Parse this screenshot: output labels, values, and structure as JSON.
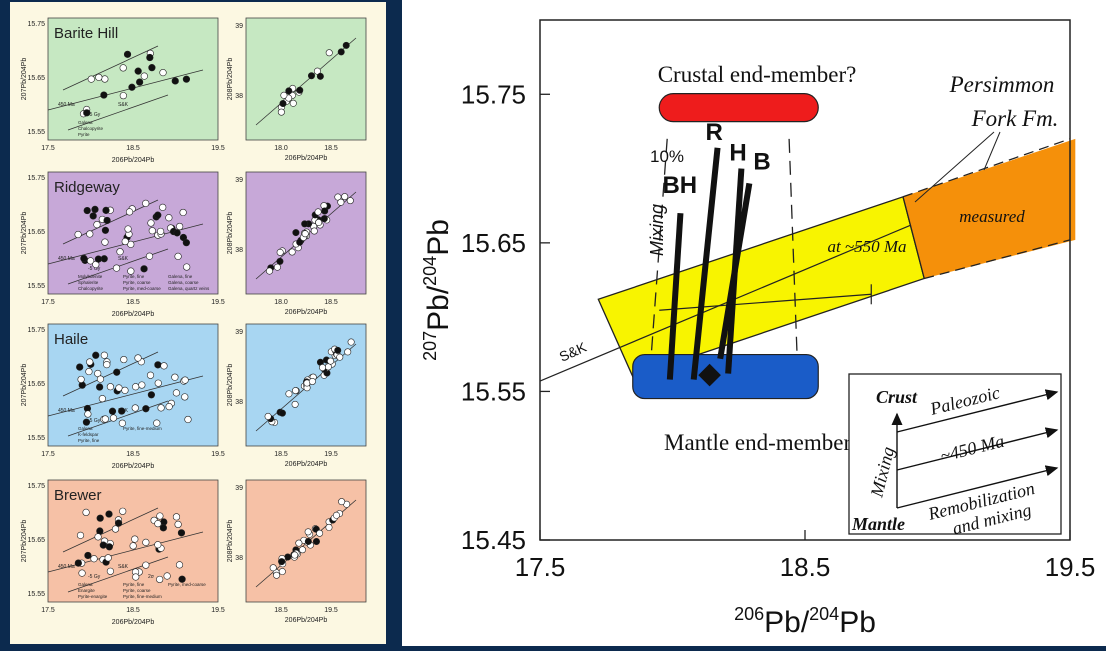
{
  "colors": {
    "background": "#0c2a4e",
    "left_panel": "#fcf8e2",
    "green": "#c6e8c2",
    "purple": "#c7a8d8",
    "blue": "#a8d6f2",
    "salmon": "#f6c1a6",
    "crust_box": "#ee1c1c",
    "mantle_box": "#1a5cc8",
    "persimmon_yellow": "#f8f400",
    "measured_orange": "#f5900a"
  },
  "small_plots": [
    {
      "title": "Barite Hill",
      "ylabel": "207Pb/204Pb",
      "ylabel_right": "208Pb/204Pb",
      "xlabel": "206Pb/204Pb",
      "y_ticks": [
        "15.75",
        "15.65",
        "15.55"
      ],
      "x_ticks": [
        "17.5",
        "18.5",
        "19.5"
      ],
      "x_ticks_right": [
        "18.0",
        "18.5"
      ],
      "y_ticks_right": [
        "39",
        "38"
      ],
      "annotations": [
        "450 Ma",
        "-5 Gy",
        "S&K"
      ],
      "legend": [
        "Galena",
        "Chalcopyrite",
        "Pyrite"
      ]
    },
    {
      "title": "Ridgeway",
      "ylabel": "207Pb/204Pb",
      "ylabel_right": "208Pb/204Pb",
      "xlabel": "206Pb/204Pb",
      "y_ticks": [
        "15.75",
        "15.65",
        "15.55"
      ],
      "x_ticks": [
        "17.5",
        "18.5",
        "19.5"
      ],
      "x_ticks_right": [
        "18.0",
        "18.5"
      ],
      "y_ticks_right": [
        "39",
        "38"
      ],
      "annotations": [
        "450 Ma",
        "-5 Gy",
        "S&K"
      ],
      "legend": [
        "Molybdenite",
        "Sphalerite",
        "Chalcopyrite",
        "Pyrite, fine",
        "Pyrite, coarse",
        "Pyrite, med-coarse",
        "Galena, fine",
        "Galena, coarse",
        "Galena, quartz veins"
      ]
    },
    {
      "title": "Haile",
      "ylabel": "207Pb/204Pb",
      "ylabel_right": "208Pb/204Pb",
      "xlabel": "206Pb/204Pb",
      "y_ticks": [
        "15.75",
        "15.65",
        "15.55"
      ],
      "x_ticks": [
        "17.5",
        "18.5",
        "19.5"
      ],
      "x_ticks_right": [
        "18.5",
        "19.5"
      ],
      "y_ticks_right": [
        "39",
        "38"
      ],
      "annotations": [
        "450 Ma",
        "-5 Gy",
        "S&K"
      ],
      "legend": [
        "Galena",
        "K-feldspar",
        "Pyrite, fine",
        "Pyrite, fine-medium"
      ]
    },
    {
      "title": "Brewer",
      "ylabel": "207Pb/204Pb",
      "ylabel_right": "208Pb/204Pb",
      "xlabel": "206Pb/204Pb",
      "y_ticks": [
        "15.75",
        "15.65",
        "15.55"
      ],
      "x_ticks": [
        "17.5",
        "18.5",
        "19.5"
      ],
      "x_ticks_right": [
        "18.5",
        "19.5"
      ],
      "y_ticks_right": [
        "39",
        "38"
      ],
      "annotations": [
        "450 Ma",
        "-5 Gy",
        "S&K",
        "2σ"
      ],
      "legend": [
        "Galena",
        "Enargite",
        "Pyrite-enargite",
        "Pyrite, fine",
        "Pyrite, coarse",
        "Pyrite, fine-medium",
        "Pyrite, med-coarse"
      ]
    }
  ],
  "chart_data": {
    "type": "scatter",
    "title": "",
    "xlabel": "206Pb/204Pb",
    "ylabel": "207Pb/204Pb",
    "xlim": [
      17.5,
      19.5
    ],
    "ylim": [
      15.45,
      15.8
    ],
    "x_ticks": [
      17.5,
      18.5,
      19.5
    ],
    "y_ticks": [
      15.45,
      15.55,
      15.65,
      15.75
    ],
    "x_tick_labels": [
      "17.5",
      "18.5",
      "19.5"
    ],
    "y_tick_labels": [
      "15.45",
      "15.55",
      "15.65",
      "15.75"
    ],
    "annotations": {
      "crustal": "Crustal end-member?",
      "mantle": "Mantle end-member?",
      "persimmon_line1": "Persimmon",
      "persimmon_line2": "Fork Fm.",
      "measured": "measured",
      "at550": "at ~550 Ma",
      "mixing": "Mixing",
      "ten_percent": "10%",
      "sk": "S&K"
    },
    "end_members": {
      "crust": {
        "x": [
          17.95,
          18.55
        ],
        "y": 15.741
      },
      "mantle": {
        "x": [
          17.85,
          18.55
        ],
        "y": 15.56
      }
    },
    "trend_lines": [
      {
        "name": "BH",
        "x": [
          17.99,
          18.03
        ],
        "y": [
          15.558,
          15.67
        ]
      },
      {
        "name": "R",
        "x": [
          18.08,
          18.17
        ],
        "y": [
          15.558,
          15.714
        ]
      },
      {
        "name": "H",
        "x": [
          18.21,
          18.26
        ],
        "y": [
          15.562,
          15.7
        ]
      },
      {
        "name": "B",
        "x": [
          18.18,
          18.29
        ],
        "y": [
          15.572,
          15.69
        ]
      }
    ],
    "mantle_point": {
      "x": 18.14,
      "y": 15.561
    },
    "sk_curve": {
      "x": [
        17.5,
        18.9
      ],
      "y": [
        15.557,
        15.662
      ]
    },
    "error_bar": {
      "x": [
        17.95,
        18.75
      ],
      "y": 15.61
    },
    "insert": {
      "labels": [
        "Crust",
        "Paleozoic",
        "~450 Ma",
        "Mixing",
        "Remobilization and mixing",
        "Mantle"
      ]
    }
  }
}
